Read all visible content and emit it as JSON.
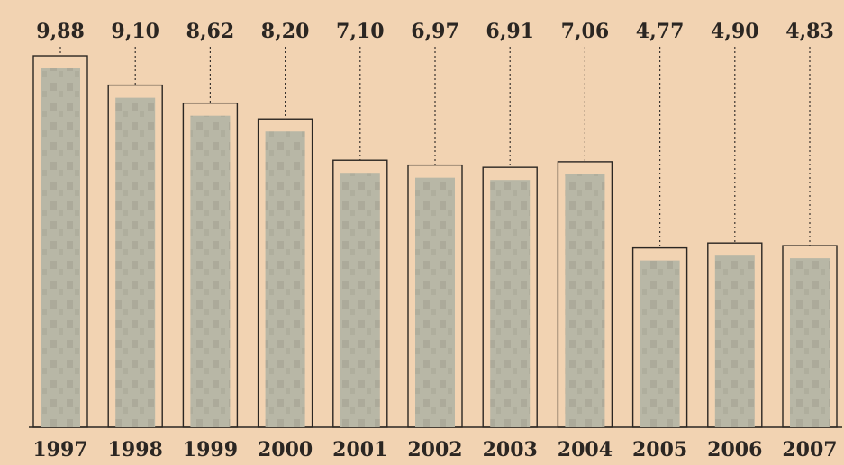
{
  "chart_data": {
    "type": "bar",
    "categories": [
      "1997",
      "1998",
      "1999",
      "2000",
      "2001",
      "2002",
      "2003",
      "2004",
      "2005",
      "2006",
      "2007"
    ],
    "values": [
      9.88,
      9.1,
      8.62,
      8.2,
      7.1,
      6.97,
      6.91,
      7.06,
      4.77,
      4.9,
      4.83
    ],
    "value_labels": [
      "9,88",
      "9,10",
      "8,62",
      "8,20",
      "7,10",
      "6,97",
      "6,91",
      "7,06",
      "4,77",
      "4,90",
      "4,83"
    ],
    "title": "",
    "xlabel": "",
    "ylabel": "",
    "ylim": [
      0,
      10
    ],
    "grid": false,
    "legend": "none"
  },
  "colors": {
    "background": "#f2d3b2",
    "bar_fill": "#b8b7a6",
    "bar_inner_shadow": "#9d9c8d",
    "bar_outline": "#2b2622",
    "text": "#2b2622",
    "dotted_line": "#3a332e",
    "baseline": "#2b2622"
  }
}
